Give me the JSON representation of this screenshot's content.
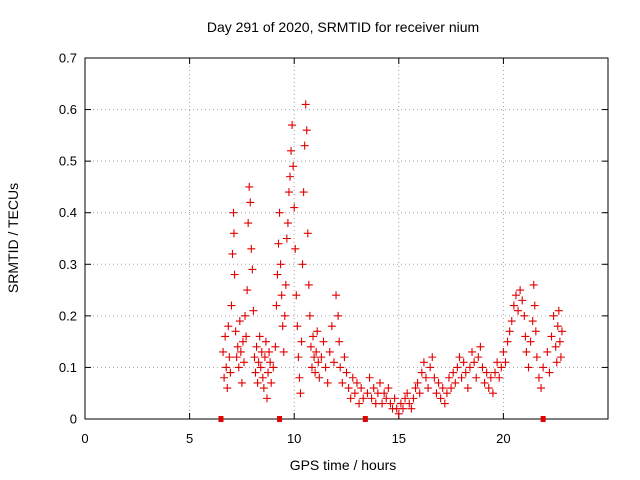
{
  "chart_data": {
    "type": "scatter",
    "title": "Day 291 of 2020, SRMTID for receiver nium",
    "xlabel": "GPS time / hours",
    "ylabel": "SRMTID / TECUs",
    "xlim": [
      0,
      25
    ],
    "ylim": [
      0,
      0.7
    ],
    "x_ticks": [
      0,
      5,
      10,
      15,
      20
    ],
    "y_ticks": [
      0,
      0.1,
      0.2,
      0.3,
      0.4,
      0.5,
      0.6,
      0.7
    ],
    "grid": true,
    "legend": "none",
    "marker": "plus",
    "color": "#e00000",
    "gap_markers_x": [
      6.5,
      9.3,
      13.4,
      21.9
    ],
    "series": [
      {
        "points": [
          [
            6.6,
            0.13
          ],
          [
            6.65,
            0.08
          ],
          [
            6.7,
            0.16
          ],
          [
            6.75,
            0.1
          ],
          [
            6.8,
            0.06
          ],
          [
            6.85,
            0.18
          ],
          [
            6.9,
            0.12
          ],
          [
            6.95,
            0.09
          ],
          [
            7.0,
            0.22
          ],
          [
            7.05,
            0.32
          ],
          [
            7.1,
            0.4
          ],
          [
            7.12,
            0.36
          ],
          [
            7.15,
            0.28
          ],
          [
            7.2,
            0.17
          ],
          [
            7.25,
            0.12
          ],
          [
            7.3,
            0.14
          ],
          [
            7.35,
            0.1
          ],
          [
            7.4,
            0.19
          ],
          [
            7.45,
            0.13
          ],
          [
            7.5,
            0.07
          ],
          [
            7.55,
            0.15
          ],
          [
            7.6,
            0.11
          ],
          [
            7.65,
            0.2
          ],
          [
            7.7,
            0.16
          ],
          [
            7.75,
            0.25
          ],
          [
            7.8,
            0.38
          ],
          [
            7.85,
            0.45
          ],
          [
            7.9,
            0.42
          ],
          [
            7.95,
            0.33
          ],
          [
            8.0,
            0.29
          ],
          [
            8.05,
            0.21
          ],
          [
            8.1,
            0.12
          ],
          [
            8.15,
            0.09
          ],
          [
            8.2,
            0.14
          ],
          [
            8.25,
            0.07
          ],
          [
            8.3,
            0.11
          ],
          [
            8.35,
            0.16
          ],
          [
            8.4,
            0.1
          ],
          [
            8.45,
            0.13
          ],
          [
            8.5,
            0.08
          ],
          [
            8.55,
            0.06
          ],
          [
            8.6,
            0.12
          ],
          [
            8.65,
            0.15
          ],
          [
            8.7,
            0.04
          ],
          [
            8.75,
            0.09
          ],
          [
            8.8,
            0.13
          ],
          [
            8.85,
            0.11
          ],
          [
            8.9,
            0.07
          ],
          [
            9.0,
            0.1
          ],
          [
            9.1,
            0.14
          ],
          [
            9.15,
            0.22
          ],
          [
            9.2,
            0.28
          ],
          [
            9.25,
            0.34
          ],
          [
            9.3,
            0.4
          ],
          [
            9.35,
            0.3
          ],
          [
            9.4,
            0.24
          ],
          [
            9.45,
            0.18
          ],
          [
            9.5,
            0.13
          ],
          [
            9.55,
            0.2
          ],
          [
            9.6,
            0.26
          ],
          [
            9.65,
            0.35
          ],
          [
            9.7,
            0.38
          ],
          [
            9.75,
            0.44
          ],
          [
            9.8,
            0.47
          ],
          [
            9.85,
            0.52
          ],
          [
            9.9,
            0.57
          ],
          [
            9.95,
            0.49
          ],
          [
            10.0,
            0.41
          ],
          [
            10.05,
            0.33
          ],
          [
            10.1,
            0.24
          ],
          [
            10.15,
            0.18
          ],
          [
            10.2,
            0.12
          ],
          [
            10.25,
            0.08
          ],
          [
            10.3,
            0.05
          ],
          [
            10.35,
            0.15
          ],
          [
            10.4,
            0.3
          ],
          [
            10.45,
            0.44
          ],
          [
            10.5,
            0.53
          ],
          [
            10.55,
            0.61
          ],
          [
            10.6,
            0.56
          ],
          [
            10.65,
            0.36
          ],
          [
            10.7,
            0.26
          ],
          [
            10.75,
            0.2
          ],
          [
            10.8,
            0.14
          ],
          [
            10.85,
            0.1
          ],
          [
            10.9,
            0.16
          ],
          [
            10.95,
            0.12
          ],
          [
            11.0,
            0.09
          ],
          [
            11.05,
            0.13
          ],
          [
            11.1,
            0.17
          ],
          [
            11.15,
            0.11
          ],
          [
            11.2,
            0.08
          ],
          [
            11.3,
            0.12
          ],
          [
            11.4,
            0.15
          ],
          [
            11.5,
            0.1
          ],
          [
            11.6,
            0.07
          ],
          [
            11.7,
            0.13
          ],
          [
            11.8,
            0.18
          ],
          [
            11.9,
            0.11
          ],
          [
            12.0,
            0.24
          ],
          [
            12.1,
            0.2
          ],
          [
            12.15,
            0.15
          ],
          [
            12.2,
            0.1
          ],
          [
            12.3,
            0.07
          ],
          [
            12.4,
            0.12
          ],
          [
            12.5,
            0.09
          ],
          [
            12.6,
            0.06
          ],
          [
            12.7,
            0.04
          ],
          [
            12.8,
            0.08
          ],
          [
            12.9,
            0.05
          ],
          [
            13.0,
            0.07
          ],
          [
            13.1,
            0.03
          ],
          [
            13.2,
            0.06
          ],
          [
            13.3,
            0.04
          ],
          [
            13.5,
            0.05
          ],
          [
            13.6,
            0.08
          ],
          [
            13.7,
            0.04
          ],
          [
            13.8,
            0.06
          ],
          [
            13.9,
            0.03
          ],
          [
            14.0,
            0.05
          ],
          [
            14.1,
            0.07
          ],
          [
            14.2,
            0.03
          ],
          [
            14.3,
            0.05
          ],
          [
            14.4,
            0.04
          ],
          [
            14.5,
            0.06
          ],
          [
            14.6,
            0.03
          ],
          [
            14.7,
            0.02
          ],
          [
            14.8,
            0.04
          ],
          [
            14.9,
            0.02
          ],
          [
            15.0,
            0.01
          ],
          [
            15.1,
            0.03
          ],
          [
            15.2,
            0.02
          ],
          [
            15.3,
            0.04
          ],
          [
            15.4,
            0.05
          ],
          [
            15.5,
            0.03
          ],
          [
            15.6,
            0.02
          ],
          [
            15.7,
            0.04
          ],
          [
            15.8,
            0.06
          ],
          [
            15.9,
            0.07
          ],
          [
            16.0,
            0.05
          ],
          [
            16.1,
            0.09
          ],
          [
            16.2,
            0.11
          ],
          [
            16.3,
            0.08
          ],
          [
            16.4,
            0.06
          ],
          [
            16.5,
            0.1
          ],
          [
            16.6,
            0.12
          ],
          [
            16.7,
            0.08
          ],
          [
            16.8,
            0.05
          ],
          [
            16.9,
            0.07
          ],
          [
            17.0,
            0.04
          ],
          [
            17.1,
            0.06
          ],
          [
            17.2,
            0.03
          ],
          [
            17.3,
            0.05
          ],
          [
            17.4,
            0.08
          ],
          [
            17.5,
            0.06
          ],
          [
            17.6,
            0.09
          ],
          [
            17.7,
            0.07
          ],
          [
            17.8,
            0.1
          ],
          [
            17.9,
            0.12
          ],
          [
            18.0,
            0.08
          ],
          [
            18.1,
            0.11
          ],
          [
            18.2,
            0.09
          ],
          [
            18.3,
            0.06
          ],
          [
            18.4,
            0.1
          ],
          [
            18.5,
            0.13
          ],
          [
            18.6,
            0.11
          ],
          [
            18.7,
            0.08
          ],
          [
            18.8,
            0.12
          ],
          [
            18.9,
            0.14
          ],
          [
            19.0,
            0.1
          ],
          [
            19.1,
            0.07
          ],
          [
            19.2,
            0.09
          ],
          [
            19.3,
            0.06
          ],
          [
            19.4,
            0.08
          ],
          [
            19.5,
            0.05
          ],
          [
            19.6,
            0.09
          ],
          [
            19.7,
            0.11
          ],
          [
            19.8,
            0.08
          ],
          [
            19.9,
            0.1
          ],
          [
            20.0,
            0.13
          ],
          [
            20.1,
            0.11
          ],
          [
            20.2,
            0.15
          ],
          [
            20.3,
            0.17
          ],
          [
            20.4,
            0.19
          ],
          [
            20.5,
            0.22
          ],
          [
            20.6,
            0.24
          ],
          [
            20.7,
            0.21
          ],
          [
            20.8,
            0.25
          ],
          [
            20.9,
            0.23
          ],
          [
            21.0,
            0.2
          ],
          [
            21.05,
            0.16
          ],
          [
            21.1,
            0.13
          ],
          [
            21.2,
            0.1
          ],
          [
            21.3,
            0.15
          ],
          [
            21.4,
            0.19
          ],
          [
            21.45,
            0.26
          ],
          [
            21.5,
            0.22
          ],
          [
            21.55,
            0.17
          ],
          [
            21.6,
            0.12
          ],
          [
            21.7,
            0.08
          ],
          [
            21.8,
            0.06
          ],
          [
            21.9,
            0.1
          ],
          [
            22.1,
            0.13
          ],
          [
            22.2,
            0.09
          ],
          [
            22.3,
            0.16
          ],
          [
            22.4,
            0.2
          ],
          [
            22.5,
            0.14
          ],
          [
            22.55,
            0.11
          ],
          [
            22.6,
            0.18
          ],
          [
            22.65,
            0.21
          ],
          [
            22.7,
            0.15
          ],
          [
            22.75,
            0.12
          ],
          [
            22.8,
            0.17
          ]
        ]
      }
    ]
  }
}
